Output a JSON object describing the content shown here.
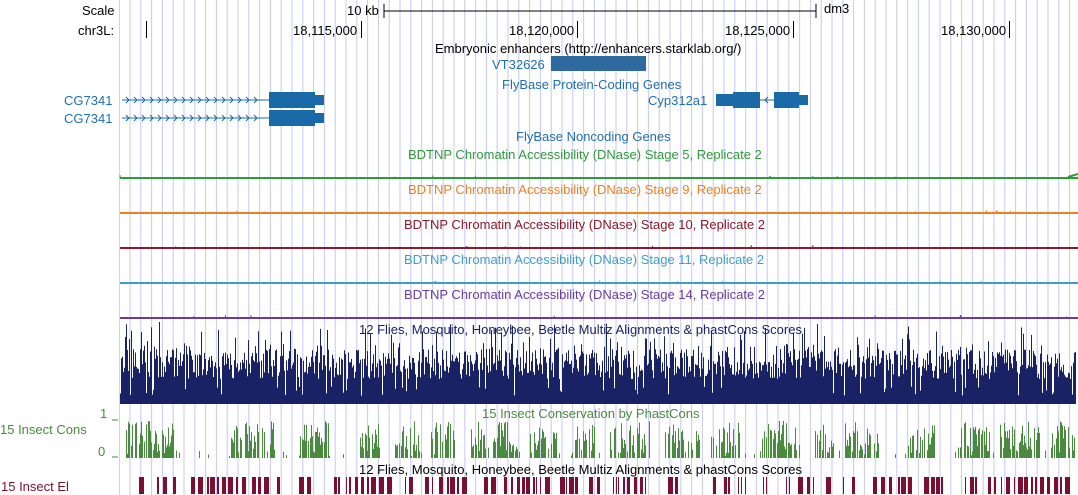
{
  "browser": {
    "assembly": "dm3",
    "scale": {
      "label": "Scale",
      "value": "10 kb"
    },
    "position": {
      "chrom_label": "chr3L:",
      "ticks": [
        "18,115,000",
        "18,120,000",
        "18,125,000",
        "18,130,000"
      ]
    }
  },
  "tracks": {
    "enhancers": {
      "title": "Embryonic enhancers (http://enhancers.starklab.org/)",
      "features": [
        "VT32626"
      ]
    },
    "flybase_coding": {
      "title": "FlyBase Protein-Coding Genes",
      "genes": [
        "CG7341",
        "CG7341",
        "Cyp312a1"
      ]
    },
    "flybase_noncoding": {
      "title": "FlyBase Noncoding Genes"
    },
    "dnase": [
      {
        "title": "BDTNP Chromatin Accessibility (DNase) Stage 5, Replicate 2",
        "color": "#2e9a3a"
      },
      {
        "title": "BDTNP Chromatin Accessibility (DNase) Stage 9, Replicate 2",
        "color": "#f07f1e"
      },
      {
        "title": "BDTNP Chromatin Accessibility (DNase) Stage 10, Replicate 2",
        "color": "#8b1a2a"
      },
      {
        "title": "BDTNP Chromatin Accessibility (DNase) Stage 11, Replicate 2",
        "color": "#3d9fc8"
      },
      {
        "title": "BDTNP Chromatin Accessibility (DNase) Stage 14, Replicate 2",
        "color": "#6a3ca0"
      }
    ],
    "multiz": {
      "title": "12 Flies, Mosquito, Honeybee, Beetle Multiz Alignments & phastCons Scores",
      "color": "#1a2266"
    },
    "phastcons": {
      "title": "15 Insect Conservation by PhastCons",
      "left_label": "15 Insect Cons",
      "scale_max": "1",
      "scale_min": "0",
      "color": "#4a8a3e"
    },
    "elements": {
      "title": "12 Flies, Mosquito, Honeybee, Beetle Multiz Alignments & phastCons Scores",
      "left_label": "15 Insect El",
      "color": "#7a1030"
    }
  },
  "colors": {
    "gene_blue": "#1a6aa8",
    "enhancer_blue": "#2f6a9e",
    "label_blue": "#1f6fb0",
    "grid_blue": "#c8c8f0",
    "grid_pink": "#f0c8c8"
  }
}
